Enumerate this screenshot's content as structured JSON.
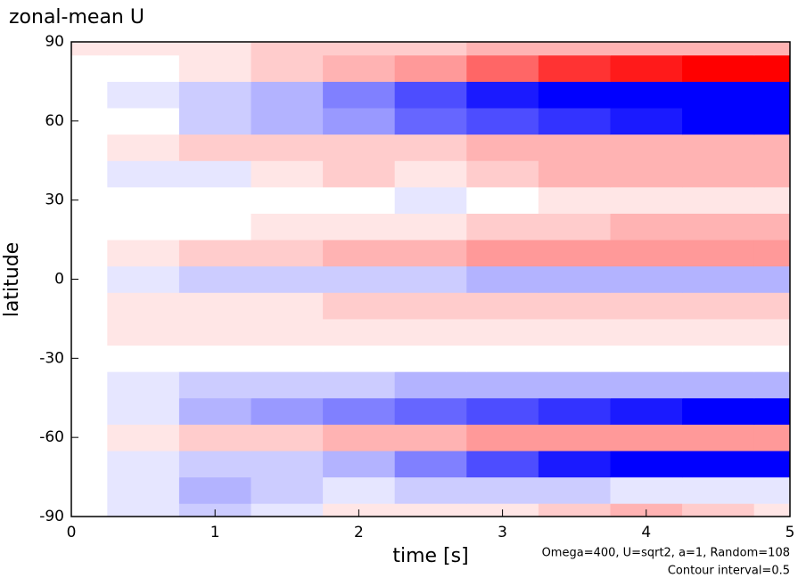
{
  "chart_data": {
    "type": "heatmap",
    "title": "zonal-mean U",
    "xlabel": "time [s]",
    "ylabel": "latitude",
    "annotations": [
      "Omega=400, U=sqrt2, a=1, Random=108",
      "Contour interval=0.5"
    ],
    "x": [
      0,
      0.5,
      1,
      1.5,
      2,
      2.5,
      3,
      3.5,
      4,
      4.5,
      5
    ],
    "y": [
      -90,
      -80,
      -70,
      -60,
      -50,
      -40,
      -30,
      -20,
      -10,
      0,
      10,
      20,
      30,
      40,
      50,
      60,
      70,
      80,
      90
    ],
    "z": [
      [
        0,
        -1,
        -2,
        -1,
        1,
        1,
        1,
        2,
        3,
        2,
        1
      ],
      [
        0,
        -1,
        -3,
        -2,
        -1,
        -2,
        -2,
        -2,
        -1,
        -1,
        -1
      ],
      [
        0,
        -1,
        -2,
        -2,
        -3,
        -5,
        -7,
        -9,
        -10,
        -11,
        -11
      ],
      [
        0,
        1,
        2,
        2,
        3,
        3,
        4,
        4,
        4,
        4,
        4
      ],
      [
        0,
        -1,
        -3,
        -4,
        -5,
        -6,
        -7,
        -8,
        -9,
        -10,
        -10
      ],
      [
        0,
        -1,
        -2,
        -2,
        -2,
        -3,
        -3,
        -3,
        -3,
        -3,
        -3
      ],
      [
        0,
        0,
        0,
        0,
        0,
        0,
        0,
        0,
        0,
        0,
        0
      ],
      [
        0,
        1,
        1,
        1,
        1,
        1,
        1,
        1,
        1,
        1,
        1
      ],
      [
        0,
        1,
        1,
        1,
        2,
        2,
        2,
        2,
        2,
        2,
        2
      ],
      [
        0,
        -1,
        -2,
        -2,
        -2,
        -2,
        -3,
        -3,
        -3,
        -3,
        -3
      ],
      [
        0,
        1,
        2,
        2,
        3,
        3,
        4,
        4,
        4,
        4,
        4
      ],
      [
        0,
        0,
        0,
        1,
        1,
        1,
        2,
        2,
        3,
        3,
        3
      ],
      [
        0,
        0,
        0,
        0,
        0,
        -1,
        0,
        1,
        1,
        1,
        1
      ],
      [
        0,
        -1,
        -1,
        1,
        2,
        1,
        2,
        3,
        3,
        3,
        3
      ],
      [
        0,
        1,
        2,
        2,
        2,
        2,
        3,
        3,
        3,
        3,
        3
      ],
      [
        0,
        0,
        -2,
        -3,
        -4,
        -6,
        -7,
        -8,
        -9,
        -10,
        -10
      ],
      [
        0,
        -1,
        -2,
        -3,
        -5,
        -7,
        -9,
        -10,
        -11,
        -12,
        -12
      ],
      [
        0,
        0,
        1,
        2,
        3,
        4,
        6,
        8,
        9,
        10,
        10
      ],
      [
        1,
        1,
        1,
        2,
        2,
        2,
        3,
        3,
        3,
        3,
        3
      ]
    ],
    "clim": [
      -10,
      10
    ],
    "positive_color": "#ff0000",
    "negative_color": "#0000ff",
    "xlim": [
      0,
      5
    ],
    "xticks": [
      0,
      1,
      2,
      3,
      4,
      5
    ],
    "ylim": [
      -90,
      90
    ],
    "yticks": [
      -90,
      -60,
      -30,
      0,
      30,
      60,
      90
    ]
  }
}
